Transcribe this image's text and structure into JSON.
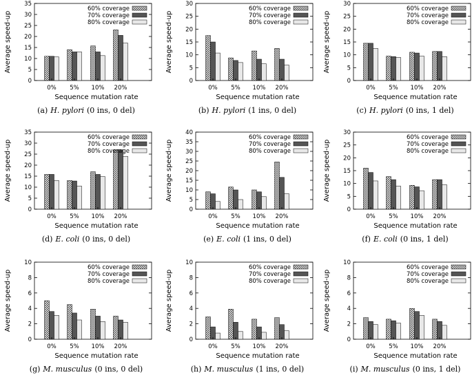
{
  "figure": {
    "series_names": [
      "60% coverage",
      "70% coverage",
      "80% coverage"
    ],
    "colors": {
      "s70": "#555555",
      "s80": "#e8e8e8",
      "stroke": "#000000"
    }
  },
  "chart_data": [
    {
      "type": "bar",
      "panel_label": "(a)",
      "organism": "H. pylori",
      "params": "(0 ins, 0 del)",
      "categories": [
        "0%",
        "5%",
        "10%",
        "20%"
      ],
      "xlabel": "Sequence mutation rate",
      "ylabel": "Average speed-up",
      "ylim": [
        0,
        35
      ],
      "yticks": [
        0,
        5,
        10,
        15,
        20,
        25,
        30,
        35
      ],
      "series": [
        {
          "name": "60% coverage",
          "values": [
            11,
            14,
            15.7,
            23
          ]
        },
        {
          "name": "70% coverage",
          "values": [
            11,
            13,
            13,
            20.5
          ]
        },
        {
          "name": "80% coverage",
          "values": [
            10.7,
            13,
            11.3,
            17
          ]
        }
      ]
    },
    {
      "type": "bar",
      "panel_label": "(b)",
      "organism": "H. pylori",
      "params": "(1 ins, 0 del)",
      "categories": [
        "0%",
        "5%",
        "10%",
        "20%"
      ],
      "xlabel": "Sequence mutation rate",
      "ylabel": "Average speed-up",
      "ylim": [
        0,
        30
      ],
      "yticks": [
        0,
        5,
        10,
        15,
        20,
        25,
        30
      ],
      "series": [
        {
          "name": "60% coverage",
          "values": [
            17.5,
            8.8,
            11.5,
            12.5
          ]
        },
        {
          "name": "70% coverage",
          "values": [
            15,
            7.8,
            8.3,
            8.3
          ]
        },
        {
          "name": "80% coverage",
          "values": [
            10.7,
            7,
            6.5,
            6
          ]
        }
      ]
    },
    {
      "type": "bar",
      "panel_label": "(c)",
      "organism": "H. pylori",
      "params": "(0 ins, 1 del)",
      "categories": [
        "0%",
        "5%",
        "10%",
        "20%"
      ],
      "xlabel": "Sequence mutation rate",
      "ylabel": "Average speed-up",
      "ylim": [
        0,
        30
      ],
      "yticks": [
        0,
        5,
        10,
        15,
        20,
        25,
        30
      ],
      "series": [
        {
          "name": "60% coverage",
          "values": [
            14.5,
            9.5,
            11,
            11.3
          ]
        },
        {
          "name": "70% coverage",
          "values": [
            14.5,
            9.3,
            10.7,
            11.3
          ]
        },
        {
          "name": "80% coverage",
          "values": [
            12.5,
            9,
            9.5,
            9.3
          ]
        }
      ]
    },
    {
      "type": "bar",
      "panel_label": "(d)",
      "organism": "E. coli",
      "params": "(0 ins, 0 del)",
      "categories": [
        "0%",
        "5%",
        "10%",
        "20%"
      ],
      "xlabel": "Sequence mutation rate",
      "ylabel": "Average speed-up",
      "ylim": [
        0,
        35
      ],
      "yticks": [
        0,
        5,
        10,
        15,
        20,
        25,
        30,
        35
      ],
      "series": [
        {
          "name": "60% coverage",
          "values": [
            15.8,
            13,
            17,
            27
          ]
        },
        {
          "name": "70% coverage",
          "values": [
            15.8,
            12.8,
            15.8,
            27
          ]
        },
        {
          "name": "80% coverage",
          "values": [
            13,
            10.5,
            14.8,
            24
          ]
        }
      ]
    },
    {
      "type": "bar",
      "panel_label": "(e)",
      "organism": "E. coli",
      "params": "(1 ins, 0 del)",
      "categories": [
        "0%",
        "5%",
        "10%",
        "20%"
      ],
      "xlabel": "Sequence mutation rate",
      "ylabel": "Average speed-up",
      "ylim": [
        0,
        40
      ],
      "yticks": [
        0,
        5,
        10,
        15,
        20,
        25,
        30,
        35,
        40
      ],
      "series": [
        {
          "name": "60% coverage",
          "values": [
            9,
            11.5,
            10,
            24.5
          ]
        },
        {
          "name": "70% coverage",
          "values": [
            8,
            10,
            9,
            16.5
          ]
        },
        {
          "name": "80% coverage",
          "values": [
            4,
            5,
            6.5,
            8
          ]
        }
      ]
    },
    {
      "type": "bar",
      "panel_label": "(f)",
      "organism": "E. coli",
      "params": "(0 ins, 1 del)",
      "categories": [
        "0%",
        "5%",
        "10%",
        "20%"
      ],
      "xlabel": "Sequence mutation rate",
      "ylabel": "Average speed-up",
      "ylim": [
        0,
        30
      ],
      "yticks": [
        0,
        5,
        10,
        15,
        20,
        25,
        30
      ],
      "series": [
        {
          "name": "60% coverage",
          "values": [
            16,
            12.7,
            9.3,
            11.5
          ]
        },
        {
          "name": "70% coverage",
          "values": [
            14.3,
            11.5,
            8.7,
            11.5
          ]
        },
        {
          "name": "80% coverage",
          "values": [
            11,
            9,
            7.2,
            9.5
          ]
        }
      ]
    },
    {
      "type": "bar",
      "panel_label": "(g)",
      "organism": "M. musculus",
      "params": "(0 ins, 0 del)",
      "categories": [
        "0%",
        "5%",
        "10%",
        "20%"
      ],
      "xlabel": "Sequence mutation rate",
      "ylabel": "Average speed-up",
      "ylim": [
        0,
        10
      ],
      "yticks": [
        0,
        2,
        4,
        6,
        8,
        10
      ],
      "series": [
        {
          "name": "60% coverage",
          "values": [
            5,
            4.5,
            3.9,
            3
          ]
        },
        {
          "name": "70% coverage",
          "values": [
            3.6,
            3.4,
            3,
            2.5
          ]
        },
        {
          "name": "80% coverage",
          "values": [
            3.1,
            2.5,
            2.3,
            2.2
          ]
        }
      ]
    },
    {
      "type": "bar",
      "panel_label": "(h)",
      "organism": "M. musculus",
      "params": "(1 ins, 0 del)",
      "categories": [
        "0%",
        "5%",
        "10%",
        "20%"
      ],
      "xlabel": "Sequence mutation rate",
      "ylabel": "Average speed-up",
      "ylim": [
        0,
        10
      ],
      "yticks": [
        0,
        2,
        4,
        6,
        8,
        10
      ],
      "series": [
        {
          "name": "60% coverage",
          "values": [
            2.9,
            3.9,
            2.6,
            2.8
          ]
        },
        {
          "name": "70% coverage",
          "values": [
            1.6,
            2.2,
            1.6,
            1.9
          ]
        },
        {
          "name": "80% coverage",
          "values": [
            0.8,
            1,
            0.9,
            1.1
          ]
        }
      ]
    },
    {
      "type": "bar",
      "panel_label": "(i)",
      "organism": "M. musculus",
      "params": "(0 ins, 1 del)",
      "categories": [
        "0%",
        "5%",
        "10%",
        "20%"
      ],
      "xlabel": "Sequence mutation rate",
      "ylabel": "Average speed-up",
      "ylim": [
        0,
        10
      ],
      "yticks": [
        0,
        2,
        4,
        6,
        8,
        10
      ],
      "series": [
        {
          "name": "60% coverage",
          "values": [
            2.8,
            2.6,
            4,
            2.6
          ]
        },
        {
          "name": "70% coverage",
          "values": [
            2.3,
            2.4,
            3.6,
            2.3
          ]
        },
        {
          "name": "80% coverage",
          "values": [
            1.9,
            2.1,
            3.1,
            1.8
          ]
        }
      ]
    }
  ]
}
